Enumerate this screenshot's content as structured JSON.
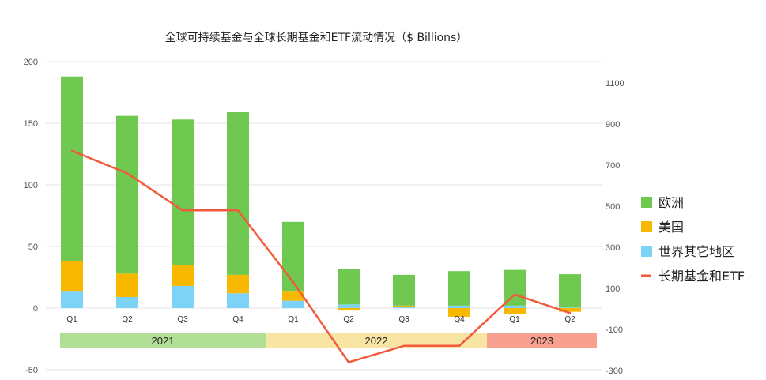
{
  "chart_data": {
    "type": "bar",
    "title": "全球可持续基金与全球长期基金和ETF流动情况（$ Billions）",
    "categories": [
      "Q1",
      "Q2",
      "Q3",
      "Q4",
      "Q1",
      "Q2",
      "Q3",
      "Q4",
      "Q1",
      "Q2"
    ],
    "year_groups": [
      {
        "label": "2021",
        "color": "#b2df96"
      },
      {
        "label": "2022",
        "color": "#f8e5a3"
      },
      {
        "label": "2023",
        "color": "#f7a08f"
      }
    ],
    "ylim_left": [
      -50,
      200
    ],
    "yticks_left": [
      "200",
      "150",
      "100",
      "50",
      "0",
      "-50"
    ],
    "ylim_right": [
      -300,
      1200
    ],
    "yticks_right": [
      "1100",
      "900",
      "700",
      "500",
      "300",
      "100",
      "-100",
      "-300"
    ],
    "grid": true,
    "series": [
      {
        "name": "世界其它地区",
        "color": "#7dd3f5",
        "values": [
          14,
          9,
          18,
          12,
          6,
          3,
          1,
          2,
          2,
          0.5
        ]
      },
      {
        "name": "美国",
        "color": "#f8b800",
        "values": [
          24,
          19,
          17,
          15,
          8,
          -2,
          1,
          -7,
          -5,
          -3
        ]
      },
      {
        "name": "欧洲",
        "color": "#6fc84f",
        "values": [
          150,
          128,
          118,
          132,
          56,
          29,
          25,
          28,
          29,
          27
        ]
      },
      {
        "name": "长期基金和ETF",
        "color": "#f15a3c",
        "type": "line",
        "axis": "right",
        "values": [
          770,
          660,
          480,
          480,
          130,
          -260,
          -180,
          -180,
          70,
          -20
        ]
      }
    ],
    "legend_position": "right"
  }
}
